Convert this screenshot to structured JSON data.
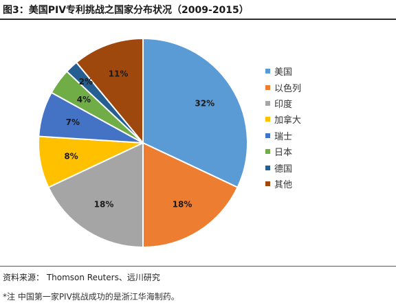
{
  "title": "图3：美国PIV专利挑战之国家分布状况（2009-2015）",
  "source": "资料来源：  Thomson Reuters、远川研究",
  "note": "*注 中国第一家PIV挑战成功的是浙江华海制药。",
  "chart_data": {
    "type": "pie",
    "start_angle_deg": 0,
    "direction": "clockwise",
    "legend_position": "right",
    "slices": [
      {
        "name": "美国",
        "value": 32,
        "label": "32%",
        "color": "#5B9BD5"
      },
      {
        "name": "以色列",
        "value": 18,
        "label": "18%",
        "color": "#ED7D31"
      },
      {
        "name": "印度",
        "value": 18,
        "label": "18%",
        "color": "#A5A5A5"
      },
      {
        "name": "加拿大",
        "value": 8,
        "label": "8%",
        "color": "#FFC000"
      },
      {
        "name": "瑞士",
        "value": 7,
        "label": "7%",
        "color": "#4472C4"
      },
      {
        "name": "日本",
        "value": 4,
        "label": "4%",
        "color": "#70AD47"
      },
      {
        "name": "德国",
        "value": 2,
        "label": "2%",
        "color": "#255E91"
      },
      {
        "name": "其他",
        "value": 11,
        "label": "11%",
        "color": "#9E480E"
      }
    ]
  }
}
